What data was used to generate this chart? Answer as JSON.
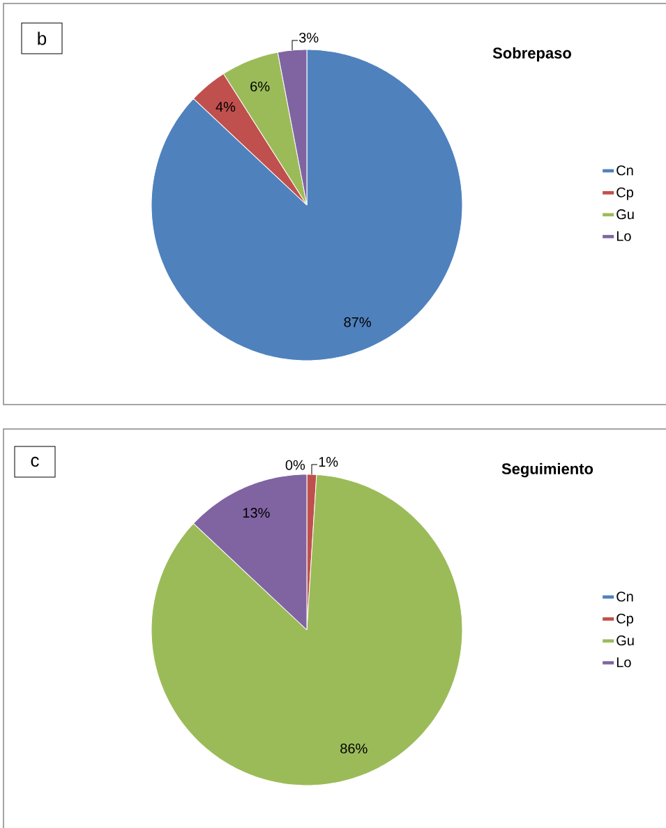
{
  "chart_data": [
    {
      "type": "pie",
      "title": "Sobrepaso",
      "categories": [
        "Cn",
        "Cp",
        "Gu",
        "Lo"
      ],
      "values": [
        87,
        4,
        6,
        3
      ],
      "colors": [
        "#4f81bd",
        "#c0504d",
        "#9bbb59",
        "#8064a2"
      ],
      "value_labels": [
        "87%",
        "4%",
        "6%",
        "3%"
      ],
      "legend": "right",
      "annotations": [
        "b"
      ]
    },
    {
      "type": "pie",
      "title": "Seguimiento",
      "categories": [
        "Cn",
        "Cp",
        "Gu",
        "Lo"
      ],
      "values": [
        0,
        1,
        86,
        13
      ],
      "colors": [
        "#4f81bd",
        "#c0504d",
        "#9bbb59",
        "#8064a2"
      ],
      "value_labels": [
        "0%",
        "1%",
        "86%",
        "13%"
      ],
      "legend": "right",
      "annotations": [
        "c"
      ]
    }
  ]
}
